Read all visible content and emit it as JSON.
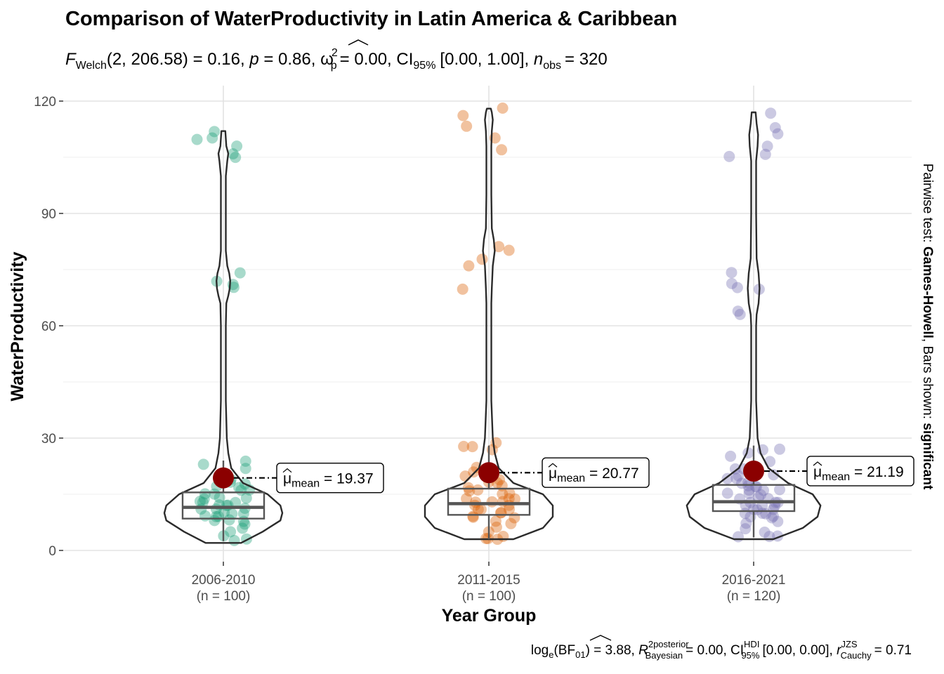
{
  "chart_data": {
    "type": "violin",
    "title": "Comparison of WaterProductivity in Latin America & Caribbean",
    "subtitle": {
      "stat_name": "F",
      "stat_sub": "Welch",
      "df": "(2, 206.58)",
      "stat_value": "= 0.16,",
      "p_label": "p",
      "p_value": "= 0.86,",
      "effect_symbol": "ω",
      "effect_sup": "2",
      "effect_sub": "p",
      "effect_value": "= 0.00, CI",
      "ci_sub": "95%",
      "ci_value": "[0.00, 1.00],",
      "n_label": "n",
      "n_sub": "obs",
      "n_value": "= 320"
    },
    "xlabel": "Year Group",
    "ylabel": "WaterProductivity",
    "ylim": [
      0,
      120
    ],
    "yticks": [
      0,
      30,
      60,
      90,
      120
    ],
    "right_label": {
      "prefix": "Pairwise test: ",
      "test": "Games-Howell",
      "middle": ", Bars shown: ",
      "shown": "significant"
    },
    "caption": {
      "log": "log",
      "log_sub": "e",
      "bf": "(BF",
      "bf_sub": "01",
      "bf_value": ") = 3.88,",
      "r_symbol": "R",
      "r_sup": "2",
      "r_sup_word": "posterior",
      "r_sub": "Bayesian",
      "r_value": "= 0.00, CI",
      "ci_sup": "HDI",
      "ci_sub": "95%",
      "ci_value": "[0.00, 0.00],",
      "rc_symbol": "r",
      "rc_sup": "JZS",
      "rc_sub": "Cauchy",
      "rc_value": "= 0.71"
    },
    "groups": [
      {
        "label": "2006-2010",
        "n_label": "(n = 100)",
        "color": "#1b9e77",
        "mean": 19.37,
        "mean_label_prefix": "μ",
        "mean_label_sub": "mean",
        "mean_label_value": "= 19.37",
        "box": {
          "q1": 8.5,
          "median": 11.5,
          "q3": 15.5,
          "min": 2.5,
          "max": 24
        },
        "points": [
          110,
          110,
          105,
          112,
          108,
          106,
          74,
          72,
          70,
          71,
          24,
          23,
          22,
          19,
          18,
          17,
          16,
          15,
          14,
          14,
          13,
          13,
          12,
          12,
          11,
          11,
          10,
          10,
          9,
          9,
          8,
          8,
          7,
          6,
          5,
          4,
          3,
          2.5,
          12,
          15,
          17,
          13,
          11,
          9,
          16,
          18,
          20,
          14,
          10,
          8
        ],
        "violin": [
          [
            2,
            18
          ],
          [
            5,
            40
          ],
          [
            8,
            58
          ],
          [
            10,
            60
          ],
          [
            12,
            58
          ],
          [
            15,
            45
          ],
          [
            18,
            20
          ],
          [
            22,
            8
          ],
          [
            26,
            5
          ],
          [
            30,
            3.5
          ],
          [
            40,
            2.5
          ],
          [
            60,
            2.5
          ],
          [
            66,
            3
          ],
          [
            68,
            5
          ],
          [
            70,
            6.5
          ],
          [
            72,
            7
          ],
          [
            74,
            6
          ],
          [
            76,
            4
          ],
          [
            80,
            2.5
          ],
          [
            95,
            2.5
          ],
          [
            100,
            2.5
          ],
          [
            104,
            4
          ],
          [
            106,
            5
          ],
          [
            108,
            3
          ],
          [
            110,
            2.5
          ],
          [
            112,
            2
          ]
        ]
      },
      {
        "label": "2011-2015",
        "n_label": "(n = 100)",
        "color": "#d95f02",
        "mean": 20.77,
        "mean_label_prefix": "μ",
        "mean_label_sub": "mean",
        "mean_label_value": "= 20.77",
        "box": {
          "q1": 9.5,
          "median": 12.5,
          "q3": 16.5,
          "min": 3,
          "max": 28
        },
        "points": [
          118,
          116,
          113,
          110,
          107,
          81,
          80,
          78,
          76,
          70,
          29,
          28,
          28,
          27,
          22,
          21,
          20,
          19,
          18,
          17,
          16,
          15,
          14,
          14,
          13,
          13,
          12,
          12,
          11,
          11,
          10,
          10,
          9,
          9,
          8,
          7,
          6,
          5,
          4,
          3,
          3,
          3,
          13,
          15,
          17,
          11,
          9,
          16,
          18,
          14
        ],
        "violin": [
          [
            3,
            25
          ],
          [
            6,
            55
          ],
          [
            9,
            65
          ],
          [
            12,
            65
          ],
          [
            15,
            55
          ],
          [
            18,
            25
          ],
          [
            22,
            10
          ],
          [
            26,
            6
          ],
          [
            30,
            4
          ],
          [
            40,
            2.5
          ],
          [
            66,
            2.5
          ],
          [
            70,
            3
          ],
          [
            76,
            4
          ],
          [
            80,
            6
          ],
          [
            83,
            5
          ],
          [
            86,
            3
          ],
          [
            95,
            2.5
          ],
          [
            108,
            2.5
          ],
          [
            112,
            3
          ],
          [
            115,
            4
          ],
          [
            117,
            3
          ],
          [
            118,
            2
          ]
        ]
      },
      {
        "label": "2016-2021",
        "n_label": "(n = 120)",
        "color": "#7570b3",
        "mean": 21.19,
        "mean_label_prefix": "μ",
        "mean_label_sub": "mean",
        "mean_label_value": "= 21.19",
        "box": {
          "q1": 10.5,
          "median": 13,
          "q3": 17.5,
          "min": 3.5,
          "max": 28
        },
        "points": [
          117,
          113,
          111,
          108,
          106,
          105,
          74,
          71,
          70,
          70,
          64,
          63,
          27,
          27,
          26,
          25,
          24,
          22,
          21,
          20,
          19,
          18,
          17,
          16,
          16,
          15,
          15,
          14,
          14,
          13,
          13,
          12,
          12,
          11,
          11,
          10,
          10,
          9,
          9,
          8,
          7,
          6,
          5,
          4,
          3.5,
          3.5,
          13,
          15,
          17,
          11,
          9,
          16,
          18,
          14,
          12,
          10,
          20,
          22,
          19,
          17
        ],
        "violin": [
          [
            3,
            20
          ],
          [
            6,
            50
          ],
          [
            9,
            65
          ],
          [
            12,
            68
          ],
          [
            15,
            60
          ],
          [
            18,
            35
          ],
          [
            22,
            15
          ],
          [
            26,
            7
          ],
          [
            30,
            4
          ],
          [
            40,
            2.5
          ],
          [
            60,
            2.5
          ],
          [
            63,
            3
          ],
          [
            66,
            5
          ],
          [
            70,
            6
          ],
          [
            74,
            5
          ],
          [
            78,
            3
          ],
          [
            90,
            2.5
          ],
          [
            104,
            2.5
          ],
          [
            108,
            4
          ],
          [
            111,
            4.5
          ],
          [
            114,
            3
          ],
          [
            117,
            2
          ]
        ]
      }
    ]
  }
}
